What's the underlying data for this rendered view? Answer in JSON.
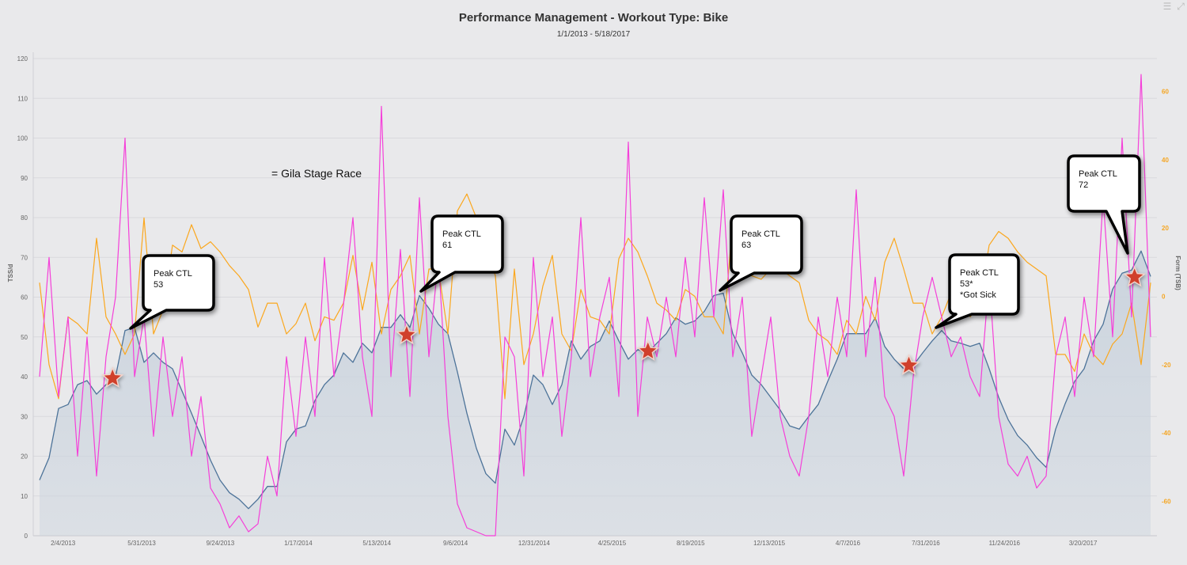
{
  "chart_data": {
    "type": "line",
    "title": "Performance Management - Workout Type: Bike",
    "subtitle": "1/1/2013 - 5/18/2017",
    "ylabel_left": "TSS/d",
    "ylabel_right": "Form (TSB)",
    "ylim_left": [
      0,
      120
    ],
    "yticks_left": [
      0,
      10,
      20,
      30,
      40,
      50,
      60,
      70,
      80,
      90,
      100,
      110,
      120
    ],
    "ylim_right": [
      -70,
      70
    ],
    "yticks_right": [
      -60,
      -40,
      -20,
      0,
      20,
      40,
      60
    ],
    "xticks": [
      "2/4/2013",
      "5/31/2013",
      "9/24/2013",
      "1/17/2014",
      "5/13/2014",
      "9/6/2014",
      "12/31/2014",
      "4/25/2015",
      "8/19/2015",
      "12/13/2015",
      "4/7/2016",
      "7/31/2016",
      "11/24/2016",
      "3/20/2017"
    ],
    "xlim": [
      "2012-12-22",
      "2017-07-07"
    ],
    "grid": true,
    "colors": {
      "ctl": "#4d7399",
      "ctl_fill": "#cbd4de",
      "tss": "#f53fd9",
      "tsb": "#fba71d",
      "left_axis_title": "#b5282e",
      "right_axis_title": "#f5a623",
      "star": "#d0402b"
    },
    "series": [
      {
        "key": "ctl",
        "axis": "left",
        "area": true,
        "values": [
          14,
          19.6,
          32,
          33,
          38,
          39,
          35.6,
          38,
          40,
          51.6,
          52.4,
          43.6,
          46,
          43.6,
          42,
          36.4,
          30.8,
          25,
          19,
          14,
          10.8,
          9.2,
          6.8,
          9.2,
          12.4,
          12.4,
          23.6,
          26.8,
          27.6,
          34,
          38,
          40.4,
          46,
          43.6,
          48.4,
          46,
          52.4,
          52.4,
          55.6,
          52.4,
          60.4,
          57.2,
          53.2,
          50.8,
          41.2,
          30.8,
          22,
          15.6,
          13.2,
          26.8,
          22.8,
          30,
          40.4,
          38,
          33,
          38,
          49,
          44.4,
          47.6,
          49,
          54,
          49,
          44.4,
          46.8,
          46,
          48.4,
          50.8,
          54.8,
          53.2,
          54,
          56.4,
          60.4,
          61,
          50.8,
          46,
          40.4,
          38,
          34.8,
          31.6,
          27.6,
          26.8,
          30,
          33,
          38.8,
          44.4,
          50.8,
          50.8,
          50.8,
          54.8,
          47.6,
          44.4,
          42,
          42.8,
          46,
          49,
          51.6,
          49,
          48.4,
          47.6,
          48.4,
          42,
          34.8,
          29.2,
          25.2,
          22.8,
          19.6,
          17.2,
          26.8,
          33.2,
          38.8,
          42,
          49,
          53.2,
          62,
          66,
          66.8,
          71.6,
          65.2
        ]
      },
      {
        "key": "tss",
        "axis": "left",
        "values": [
          40,
          70,
          35,
          55,
          20,
          50,
          15,
          45,
          60,
          100,
          40,
          55,
          25,
          50,
          30,
          45,
          20,
          35,
          12,
          8,
          2,
          5,
          1,
          3,
          20,
          10,
          45,
          25,
          50,
          30,
          70,
          40,
          58,
          80,
          45,
          30,
          108,
          40,
          72,
          35,
          85,
          45,
          70,
          30,
          8,
          2,
          1,
          0,
          0,
          50,
          45,
          15,
          70,
          40,
          55,
          25,
          45,
          80,
          40,
          55,
          65,
          35,
          99,
          30,
          55,
          45,
          60,
          45,
          70,
          50,
          85,
          55,
          87,
          45,
          60,
          25,
          40,
          55,
          30,
          20,
          15,
          30,
          55,
          40,
          60,
          45,
          87,
          45,
          65,
          35,
          30,
          15,
          40,
          55,
          65,
          55,
          45,
          50,
          40,
          35,
          65,
          30,
          18,
          15,
          20,
          12,
          15,
          45,
          55,
          35,
          60,
          45,
          85,
          50,
          100,
          55,
          116,
          50
        ]
      },
      {
        "key": "tsb",
        "axis": "right",
        "values": [
          4,
          -20,
          -30,
          -6,
          -8,
          -11,
          17,
          -6,
          -11,
          -17,
          -11,
          23,
          -11,
          -4,
          15,
          13,
          21,
          14,
          16,
          13,
          9,
          6,
          2,
          -9,
          -2,
          -2,
          -11,
          -8,
          -2,
          -13,
          -6,
          -7,
          -2,
          12,
          -4,
          10,
          -11,
          2,
          6,
          12,
          -11,
          8,
          8,
          -11,
          25,
          30,
          23,
          15,
          6,
          -30,
          8,
          -20,
          -11,
          3,
          12,
          -11,
          -16,
          2,
          -6,
          -7,
          -11,
          11,
          17,
          13,
          6,
          -2,
          -4,
          -7,
          2,
          0,
          -6,
          -6,
          -11,
          22,
          8,
          6,
          5,
          8,
          8,
          6,
          4,
          -7,
          -11,
          -13,
          -17,
          -7,
          -11,
          0,
          -7,
          10,
          17,
          8,
          -2,
          -2,
          -11,
          -6,
          1,
          0,
          -6,
          -2,
          15,
          19,
          17,
          13,
          10,
          8,
          6,
          -17,
          -17,
          -22,
          -11,
          -17,
          -20,
          -14,
          -11,
          -2,
          -20,
          4
        ]
      }
    ],
    "markers": [
      {
        "symbol": "star",
        "date": "2013-04-18",
        "value": 39.6
      },
      {
        "symbol": "star",
        "date": "2014-06-26",
        "value": 50.5
      },
      {
        "symbol": "star",
        "date": "2015-06-17",
        "value": 46.4
      },
      {
        "symbol": "star",
        "date": "2016-07-06",
        "value": 42.8
      },
      {
        "symbol": "star",
        "date": "2017-06-04",
        "value": 65
      }
    ],
    "legend_note": "= Gila Stage Race",
    "annotations": [
      {
        "lines": [
          "Peak CTL",
          "53"
        ]
      },
      {
        "lines": [
          "Peak CTL",
          "61"
        ]
      },
      {
        "lines": [
          "Peak CTL",
          "63"
        ]
      },
      {
        "lines": [
          "Peak CTL",
          "53*",
          "*Got Sick"
        ]
      },
      {
        "lines": [
          "Peak CTL",
          "72"
        ]
      }
    ]
  },
  "toolbar": {
    "menu_icon": "hamburger-menu-icon",
    "expand_icon": "expand-icon"
  }
}
